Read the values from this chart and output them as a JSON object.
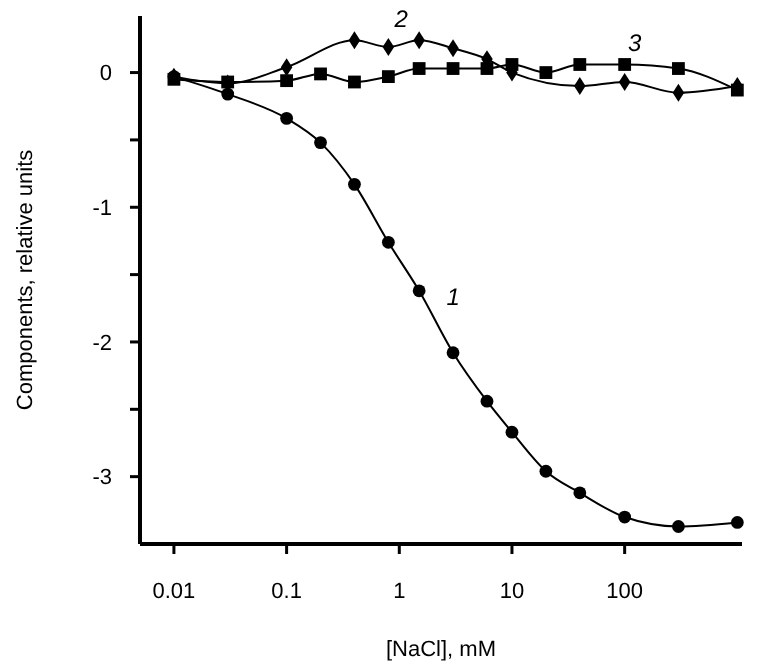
{
  "chart_data": {
    "type": "line",
    "xlabel": "[NaCl], mM",
    "ylabel": "Components, relative units",
    "log": "x",
    "xlim": [
      0.005,
      1100
    ],
    "xticks": [
      {
        "value": 0.01,
        "label": "0.01"
      },
      {
        "value": 0.1,
        "label": "0.1"
      },
      1,
      10,
      100
    ],
    "ylim": [
      -3.5,
      0.42
    ],
    "yticks": [
      0,
      {
        "value": -0.5,
        "label": null
      },
      -1,
      {
        "value": -1.5,
        "label": null
      },
      -2,
      {
        "value": -2.5,
        "label": null
      },
      -3
    ],
    "grid": false,
    "line_style": "solid",
    "series": [
      {
        "name": "1",
        "color": "#000000",
        "marker": "circle",
        "x": [
          0.01,
          0.03,
          0.1,
          0.2,
          0.4,
          0.8,
          1.5,
          3,
          6,
          10,
          20,
          40,
          100,
          300,
          1000
        ],
        "values": [
          -0.03,
          -0.16,
          -0.34,
          -0.52,
          -0.83,
          -1.26,
          -1.62,
          -2.08,
          -2.44,
          -2.67,
          -2.96,
          -3.12,
          -3.3,
          -3.37,
          -3.34
        ]
      },
      {
        "name": "2",
        "color": "#000000",
        "marker": "diamond",
        "x": [
          0.01,
          0.03,
          0.1,
          0.4,
          0.8,
          1.5,
          3,
          6,
          10,
          40,
          100,
          300,
          1000
        ],
        "values": [
          -0.03,
          -0.08,
          0.04,
          0.24,
          0.19,
          0.24,
          0.18,
          0.1,
          0,
          -0.1,
          -0.07,
          -0.15,
          -0.1
        ]
      },
      {
        "name": "3",
        "color": "#000000",
        "marker": "square",
        "x": [
          0.01,
          0.03,
          0.1,
          0.2,
          0.4,
          0.8,
          1.5,
          3,
          6,
          10,
          20,
          40,
          100,
          300,
          1000
        ],
        "values": [
          -0.05,
          -0.07,
          -0.06,
          -0.01,
          -0.07,
          -0.03,
          0.03,
          0.03,
          0.03,
          0.06,
          0,
          0.06,
          0.06,
          0.03,
          -0.13
        ]
      }
    ]
  }
}
